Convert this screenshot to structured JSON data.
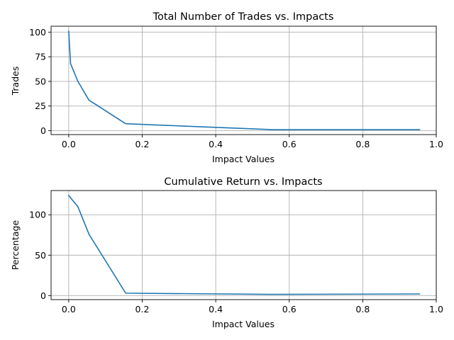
{
  "chart_data": [
    {
      "type": "line",
      "title": "Total Number of Trades vs. Impacts",
      "xlabel": "Impact Values",
      "ylabel": "Trades",
      "xlim": [
        -0.048,
        1.0
      ],
      "ylim": [
        -4,
        106
      ],
      "xticks": [
        0.0,
        0.2,
        0.4,
        0.6,
        0.8,
        1.0
      ],
      "xtick_labels": [
        "0.0",
        "0.2",
        "0.4",
        "0.6",
        "0.8",
        "1.0"
      ],
      "yticks": [
        0,
        25,
        50,
        75,
        100
      ],
      "ytick_labels": [
        "0",
        "25",
        "50",
        "75",
        "100"
      ],
      "grid": true,
      "color": "#1f77b4",
      "series": [
        {
          "x": [
            0.0,
            0.005,
            0.025,
            0.055,
            0.155,
            0.555,
            0.955
          ],
          "values": [
            101,
            68,
            50,
            31,
            7,
            1,
            1
          ]
        }
      ]
    },
    {
      "type": "line",
      "title": "Cumulative Return vs. Impacts",
      "xlabel": "Impact Values",
      "ylabel": "Percentage",
      "xlim": [
        -0.048,
        1.0
      ],
      "ylim": [
        -5,
        130
      ],
      "xticks": [
        0.0,
        0.2,
        0.4,
        0.6,
        0.8,
        1.0
      ],
      "xtick_labels": [
        "0.0",
        "0.2",
        "0.4",
        "0.6",
        "0.8",
        "1.0"
      ],
      "yticks": [
        0,
        50,
        100
      ],
      "ytick_labels": [
        "0",
        "50",
        "100"
      ],
      "grid": true,
      "color": "#1f77b4",
      "series": [
        {
          "x": [
            0.0,
            0.005,
            0.025,
            0.055,
            0.155,
            0.555,
            0.955
          ],
          "values": [
            124,
            121,
            110,
            76,
            3,
            1.5,
            2
          ]
        }
      ]
    }
  ]
}
